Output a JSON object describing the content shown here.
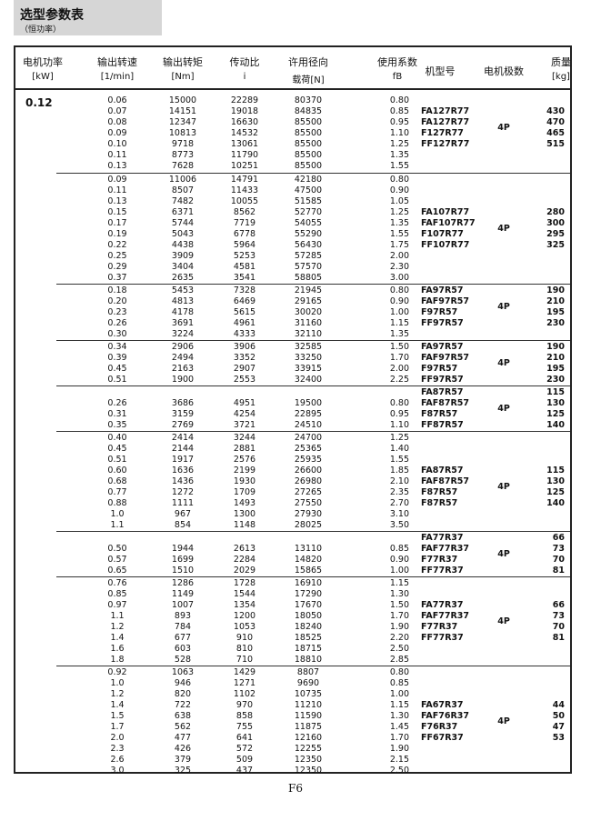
{
  "header": {
    "title": "选型参数表",
    "subtitle": "（恒功率）"
  },
  "columns": [
    {
      "line1": "电机功率",
      "line2": "[kW]"
    },
    {
      "line1": "输出转速",
      "line2": "[1/min]"
    },
    {
      "line1": "输出转矩",
      "line2": "[Nm]"
    },
    {
      "line1": "传动比",
      "line2": "i"
    },
    {
      "line1": "许用径向",
      "line2": "载荷[N]"
    },
    {
      "line1": "使用系数",
      "line2": "fB"
    },
    {
      "line1": "机型号",
      "line2": ""
    },
    {
      "line1": "电机极数",
      "line2": ""
    },
    {
      "line1": "质量",
      "line2": "[kg]"
    }
  ],
  "power": "0.12",
  "groups": [
    {
      "rows": [
        [
          "0.06",
          "15000",
          "22289",
          "80370",
          "0.80"
        ],
        [
          "0.07",
          "14151",
          "19018",
          "84835",
          "0.85"
        ],
        [
          "0.08",
          "12347",
          "16630",
          "85500",
          "0.95"
        ],
        [
          "0.09",
          "10813",
          "14532",
          "85500",
          "1.10"
        ],
        [
          "0.10",
          "9718",
          "13061",
          "85500",
          "1.25"
        ],
        [
          "0.11",
          "8773",
          "11790",
          "85500",
          "1.35"
        ],
        [
          "0.13",
          "7628",
          "10251",
          "85500",
          "1.55"
        ]
      ],
      "models": [
        "FA127R77",
        "FA127R77",
        "F127R77",
        "FF127R77"
      ],
      "masses": [
        "430",
        "470",
        "465",
        "515"
      ],
      "poles": "4P"
    },
    {
      "rows": [
        [
          "0.09",
          "11006",
          "14791",
          "42180",
          "0.80"
        ],
        [
          "0.11",
          "8507",
          "11433",
          "47500",
          "0.90"
        ],
        [
          "0.13",
          "7482",
          "10055",
          "51585",
          "1.05"
        ],
        [
          "0.15",
          "6371",
          "8562",
          "52770",
          "1.25"
        ],
        [
          "0.17",
          "5744",
          "7719",
          "54055",
          "1.35"
        ],
        [
          "0.19",
          "5043",
          "6778",
          "55290",
          "1.55"
        ],
        [
          "0.22",
          "4438",
          "5964",
          "56430",
          "1.75"
        ],
        [
          "0.25",
          "3909",
          "5253",
          "57285",
          "2.00"
        ],
        [
          "0.29",
          "3404",
          "4581",
          "57570",
          "2.30"
        ],
        [
          "0.37",
          "2635",
          "3541",
          "58805",
          "3.00"
        ]
      ],
      "models": [
        "FA107R77",
        "FAF107R77",
        "F107R77",
        "FF107R77"
      ],
      "masses": [
        "280",
        "300",
        "295",
        "325"
      ],
      "poles": "4P"
    },
    {
      "rows": [
        [
          "0.18",
          "5453",
          "7328",
          "21945",
          "0.80"
        ],
        [
          "0.20",
          "4813",
          "6469",
          "29165",
          "0.90"
        ],
        [
          "0.23",
          "4178",
          "5615",
          "30020",
          "1.00"
        ],
        [
          "0.26",
          "3691",
          "4961",
          "31160",
          "1.15"
        ],
        [
          "0.30",
          "3224",
          "4333",
          "32110",
          "1.35"
        ]
      ],
      "models": [
        "FA97R57",
        "FAF97R57",
        "F97R57",
        "FF97R57"
      ],
      "masses": [
        "190",
        "210",
        "195",
        "230"
      ],
      "poles": "4P"
    },
    {
      "rows": [
        [
          "0.34",
          "2906",
          "3906",
          "32585",
          "1.50"
        ],
        [
          "0.39",
          "2494",
          "3352",
          "33250",
          "1.70"
        ],
        [
          "0.45",
          "2163",
          "2907",
          "33915",
          "2.00"
        ],
        [
          "0.51",
          "1900",
          "2553",
          "32400",
          "2.25"
        ]
      ],
      "models": [
        "FA97R57",
        "FAF97R57",
        "F97R57",
        "FF97R57"
      ],
      "masses": [
        "190",
        "210",
        "195",
        "230"
      ],
      "poles": "4P"
    },
    {
      "rows": [
        [
          "0.26",
          "3686",
          "4951",
          "19500",
          "0.80"
        ],
        [
          "0.31",
          "3159",
          "4254",
          "22895",
          "0.95"
        ],
        [
          "0.35",
          "2769",
          "3721",
          "24510",
          "1.10"
        ]
      ],
      "models": [
        "FA87R57",
        "FAF87R57",
        "F87R57",
        "FF87R57"
      ],
      "masses": [
        "115",
        "130",
        "125",
        "140"
      ],
      "poles": "4P"
    },
    {
      "rows": [
        [
          "0.40",
          "2414",
          "3244",
          "24700",
          "1.25"
        ],
        [
          "0.45",
          "2144",
          "2881",
          "25365",
          "1.40"
        ],
        [
          "0.51",
          "1917",
          "2576",
          "25935",
          "1.55"
        ],
        [
          "0.60",
          "1636",
          "2199",
          "26600",
          "1.85"
        ],
        [
          "0.68",
          "1436",
          "1930",
          "26980",
          "2.10"
        ],
        [
          "0.77",
          "1272",
          "1709",
          "27265",
          "2.35"
        ],
        [
          "0.88",
          "1111",
          "1493",
          "27550",
          "2.70"
        ],
        [
          "1.0",
          "967",
          "1300",
          "27930",
          "3.10"
        ],
        [
          "1.1",
          "854",
          "1148",
          "28025",
          "3.50"
        ]
      ],
      "models": [
        "FA87R57",
        "FAF87R57",
        "F87R57",
        "F87R57"
      ],
      "masses": [
        "115",
        "130",
        "125",
        "140"
      ],
      "poles": "4P"
    },
    {
      "rows": [
        [
          "0.50",
          "1944",
          "2613",
          "13110",
          "0.85"
        ],
        [
          "0.57",
          "1699",
          "2284",
          "14820",
          "0.90"
        ],
        [
          "0.65",
          "1510",
          "2029",
          "15865",
          "1.00"
        ]
      ],
      "models": [
        "FA77R37",
        "FAF77R37",
        "F77R37",
        "FF77R37"
      ],
      "masses": [
        "66",
        "73",
        "70",
        "81"
      ],
      "poles": "4P"
    },
    {
      "rows": [
        [
          "0.76",
          "1286",
          "1728",
          "16910",
          "1.15"
        ],
        [
          "0.85",
          "1149",
          "1544",
          "17290",
          "1.30"
        ],
        [
          "0.97",
          "1007",
          "1354",
          "17670",
          "1.50"
        ],
        [
          "1.1",
          "893",
          "1200",
          "18050",
          "1.70"
        ],
        [
          "1.2",
          "784",
          "1053",
          "18240",
          "1.90"
        ],
        [
          "1.4",
          "677",
          "910",
          "18525",
          "2.20"
        ],
        [
          "1.6",
          "603",
          "810",
          "18715",
          "2.50"
        ],
        [
          "1.8",
          "528",
          "710",
          "18810",
          "2.85"
        ]
      ],
      "models": [
        "FA77R37",
        "FAF77R37",
        "F77R37",
        "FF77R37"
      ],
      "masses": [
        "66",
        "73",
        "70",
        "81"
      ],
      "poles": "4P"
    },
    {
      "rows": [
        [
          "0.92",
          "1063",
          "1429",
          "8807",
          "0.80"
        ],
        [
          "1.0",
          "946",
          "1271",
          "9690",
          "0.85"
        ],
        [
          "1.2",
          "820",
          "1102",
          "10735",
          "1.00"
        ],
        [
          "1.4",
          "722",
          "970",
          "11210",
          "1.15"
        ],
        [
          "1.5",
          "638",
          "858",
          "11590",
          "1.30"
        ],
        [
          "1.7",
          "562",
          "755",
          "11875",
          "1.45"
        ],
        [
          "2.0",
          "477",
          "641",
          "12160",
          "1.70"
        ],
        [
          "2.3",
          "426",
          "572",
          "12255",
          "1.90"
        ],
        [
          "2.6",
          "379",
          "509",
          "12350",
          "2.15"
        ],
        [
          "3.0",
          "325",
          "437",
          "12350",
          "2.50"
        ]
      ],
      "models": [
        "FA67R37",
        "FAF76R37",
        "F76R37",
        "FF67R37"
      ],
      "masses": [
        "44",
        "50",
        "47",
        "53"
      ],
      "poles": "4P"
    }
  ],
  "footer": {
    "page": "F6"
  }
}
